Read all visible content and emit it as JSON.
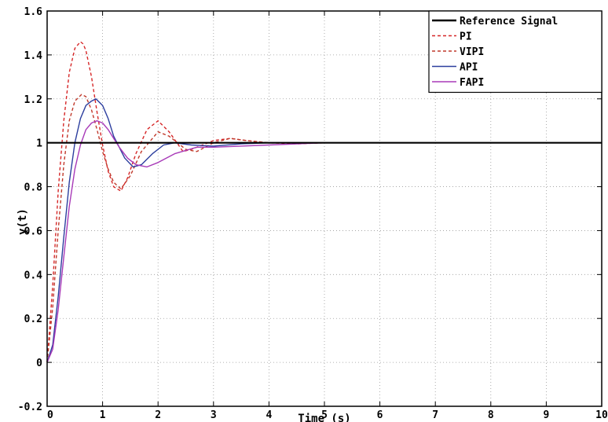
{
  "chart_data": {
    "type": "line",
    "title": "",
    "xlabel": "Time (s)",
    "ylabel": "y(t)",
    "xlim": [
      0,
      10
    ],
    "ylim": [
      -0.2,
      1.6
    ],
    "xticks": [
      0,
      1,
      2,
      3,
      4,
      5,
      6,
      7,
      8,
      9,
      10
    ],
    "xtick_labels": [
      "0",
      "1",
      "2",
      "3",
      "4",
      "5",
      "6",
      "7",
      "8",
      "9",
      "10"
    ],
    "yticks": [
      -0.2,
      0,
      0.2,
      0.4,
      0.6,
      0.8,
      1,
      1.2,
      1.4,
      1.6
    ],
    "ytick_labels": [
      "-0.2",
      "0",
      "0.2",
      "0.4",
      "0.6",
      "0.8",
      "1",
      "1.2",
      "1.4",
      "1.6"
    ],
    "grid": true,
    "legend_position": "top-right",
    "series": [
      {
        "name": "Reference Signal",
        "color": "#000000",
        "dash": "solid",
        "x": [
          0,
          10
        ],
        "y": [
          1,
          1
        ]
      },
      {
        "name": "PI",
        "color": "#d62728",
        "dash": "dashed",
        "x": [
          0,
          0.1,
          0.2,
          0.3,
          0.4,
          0.5,
          0.6,
          0.65,
          0.7,
          0.8,
          0.9,
          1.0,
          1.1,
          1.2,
          1.33,
          1.45,
          1.6,
          1.8,
          2.0,
          2.2,
          2.45,
          2.6,
          2.8,
          3.0,
          3.3,
          3.6,
          4.0,
          4.5,
          5.0,
          10
        ],
        "y": [
          0,
          0.35,
          0.78,
          1.1,
          1.32,
          1.43,
          1.46,
          1.45,
          1.42,
          1.3,
          1.14,
          0.99,
          0.87,
          0.8,
          0.78,
          0.84,
          0.95,
          1.06,
          1.1,
          1.05,
          0.96,
          0.97,
          0.99,
          1.01,
          1.02,
          1.01,
          1.0,
          0.995,
          1.0,
          1.0
        ]
      },
      {
        "name": "VIPI",
        "color": "#c0392b",
        "dash": "dashed",
        "x": [
          0,
          0.1,
          0.2,
          0.3,
          0.4,
          0.5,
          0.62,
          0.7,
          0.8,
          0.9,
          1.0,
          1.1,
          1.2,
          1.33,
          1.5,
          1.7,
          2.0,
          2.2,
          2.5,
          2.7,
          3.0,
          3.3,
          3.6,
          4.0,
          4.5,
          10
        ],
        "y": [
          0,
          0.25,
          0.6,
          0.9,
          1.1,
          1.19,
          1.22,
          1.21,
          1.15,
          1.06,
          0.96,
          0.88,
          0.82,
          0.79,
          0.85,
          0.96,
          1.05,
          1.03,
          0.97,
          0.96,
          1.0,
          1.02,
          1.01,
          1.0,
          1.0,
          1.0
        ]
      },
      {
        "name": "API",
        "color": "#2c3e9e",
        "dash": "solid",
        "x": [
          0,
          0.1,
          0.2,
          0.3,
          0.4,
          0.5,
          0.6,
          0.7,
          0.8,
          0.88,
          1.0,
          1.1,
          1.2,
          1.4,
          1.55,
          1.7,
          1.9,
          2.1,
          2.3,
          2.6,
          3.0,
          3.5,
          4.0,
          10
        ],
        "y": [
          0,
          0.08,
          0.3,
          0.57,
          0.82,
          1.0,
          1.11,
          1.17,
          1.19,
          1.2,
          1.17,
          1.11,
          1.03,
          0.93,
          0.89,
          0.9,
          0.95,
          0.99,
          1.0,
          0.99,
          0.985,
          0.995,
          1.0,
          1.0
        ]
      },
      {
        "name": "FAPI",
        "color": "#a83ab8",
        "dash": "solid",
        "x": [
          0,
          0.1,
          0.2,
          0.3,
          0.4,
          0.5,
          0.6,
          0.7,
          0.8,
          0.9,
          1.0,
          1.1,
          1.2,
          1.3,
          1.45,
          1.6,
          1.8,
          2.0,
          2.3,
          2.7,
          3.0,
          3.5,
          4.0,
          5.0,
          10
        ],
        "y": [
          0,
          0.06,
          0.24,
          0.48,
          0.71,
          0.88,
          0.99,
          1.06,
          1.09,
          1.1,
          1.09,
          1.06,
          1.02,
          0.98,
          0.93,
          0.9,
          0.89,
          0.91,
          0.95,
          0.98,
          0.98,
          0.985,
          0.99,
          1.0,
          1.0
        ]
      }
    ]
  }
}
